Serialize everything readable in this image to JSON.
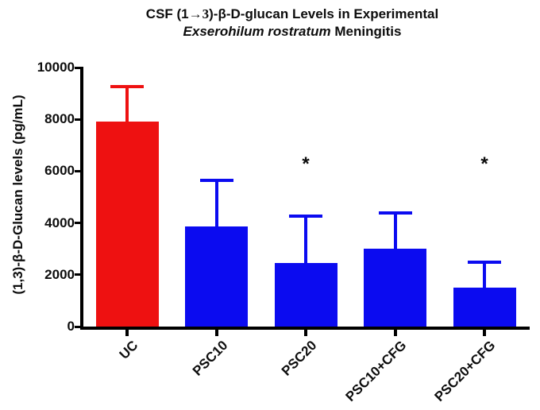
{
  "title": {
    "line1_prefix": "CSF (1",
    "line1_arrow": "→3",
    "line1_suffix": ")-β-D-glucan Levels in Experimental",
    "line2_italic": "Exserohilum rostratum",
    "line2_rest": " Meningitis"
  },
  "chart_data": {
    "type": "bar",
    "title": "CSF (1→3)-β-D-glucan Levels in Experimental Exserohilum rostratum Meningitis",
    "ylabel": "(1,3)-β-D-Glucan levels (pg/mL)",
    "xlabel": "",
    "categories": [
      "UC",
      "PSC10",
      "PSC20",
      "PSC10+CFG",
      "PSC20+CFG"
    ],
    "values": [
      7900,
      3850,
      2450,
      3000,
      1500
    ],
    "errors_upper": [
      1350,
      1800,
      1800,
      1400,
      1000
    ],
    "significance": [
      "",
      "",
      "*",
      "",
      "*"
    ],
    "bar_colors": [
      "#EE1111",
      "#0B0BF0",
      "#0B0BF0",
      "#0B0BF0",
      "#0B0BF0"
    ],
    "error_bar_colors": [
      "#EE1111",
      "#0B0BF0",
      "#0B0BF0",
      "#0B0BF0",
      "#0B0BF0"
    ],
    "axis_color": "#000000",
    "background_color": "#FFFFFF",
    "yticks": [
      0,
      2000,
      4000,
      6000,
      8000,
      10000
    ],
    "ylim": [
      0,
      10000
    ],
    "grid": false,
    "legend": "none",
    "error_bar_style": "upper-only-T-cap",
    "tick_label_rotation_deg": 45
  }
}
